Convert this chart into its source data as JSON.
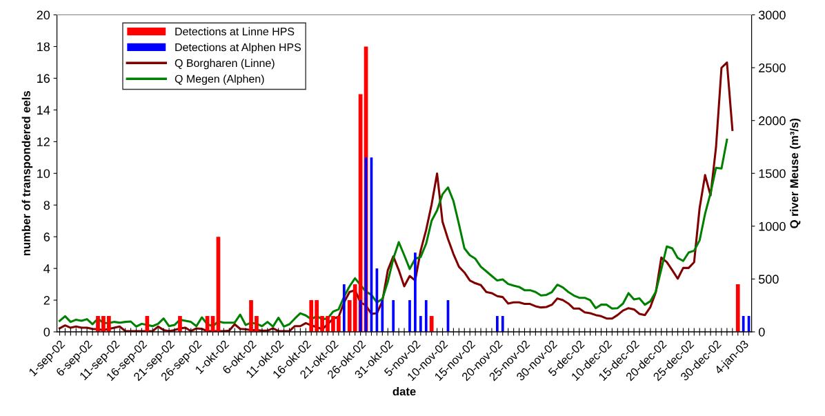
{
  "chart_data": {
    "type": "bar",
    "xlabel": "date",
    "ylabel": "number of transpondered eels",
    "y2label": "Q river Meuse (m³/s)",
    "categories": [
      "1-sep-02",
      null,
      null,
      null,
      null,
      "6-sep-02",
      null,
      null,
      null,
      null,
      "11-sep-02",
      null,
      null,
      null,
      null,
      "16-sep-02",
      null,
      null,
      null,
      null,
      "21-sep-02",
      null,
      null,
      null,
      null,
      "26-sep-02",
      null,
      null,
      null,
      null,
      "1-okt-02",
      null,
      null,
      null,
      null,
      "6-okt-02",
      null,
      null,
      null,
      null,
      "11-okt-02",
      null,
      null,
      null,
      null,
      "16-okt-02",
      null,
      null,
      null,
      null,
      "21-okt-02",
      null,
      null,
      null,
      null,
      "26-okt-02",
      null,
      null,
      null,
      null,
      "31-okt-02",
      null,
      null,
      null,
      null,
      "5-nov-02",
      null,
      null,
      null,
      null,
      "10-nov-02",
      null,
      null,
      null,
      null,
      "15-nov-02",
      null,
      null,
      null,
      null,
      "20-nov-02",
      null,
      null,
      null,
      null,
      "25-nov-02",
      null,
      null,
      null,
      null,
      "30-nov-02",
      null,
      null,
      null,
      null,
      "5-dec-02",
      null,
      null,
      null,
      null,
      "10-dec-02",
      null,
      null,
      null,
      null,
      "15-dec-02",
      null,
      null,
      null,
      null,
      "20-dec-02",
      null,
      null,
      null,
      null,
      "25-dec-02",
      null,
      null,
      null,
      null,
      "30-dec-02",
      null,
      null,
      null,
      null,
      "4-jan-03",
      null
    ],
    "ylim": [
      0,
      20
    ],
    "yticks": [
      0,
      2,
      4,
      6,
      8,
      10,
      12,
      14,
      16,
      18,
      20
    ],
    "y2lim": [
      0,
      3000
    ],
    "y2ticks": [
      0,
      500,
      1000,
      1500,
      2000,
      2500,
      3000
    ],
    "grid": false,
    "legend": "top left",
    "series": [
      {
        "name": "Detections at Linne HPS",
        "color": "#ff0000",
        "values": [
          null,
          null,
          null,
          null,
          null,
          null,
          null,
          1,
          1,
          1,
          null,
          null,
          null,
          null,
          null,
          null,
          1,
          null,
          null,
          null,
          null,
          null,
          1,
          null,
          null,
          null,
          null,
          1,
          1,
          6,
          null,
          null,
          null,
          null,
          null,
          2,
          1,
          null,
          null,
          null,
          null,
          null,
          null,
          null,
          null,
          null,
          2,
          2,
          1,
          1,
          1,
          1,
          null,
          2,
          3,
          15,
          18,
          null,
          null,
          null,
          null,
          null,
          null,
          null,
          null,
          null,
          null,
          null,
          1,
          null,
          null,
          null,
          null,
          null,
          null,
          null,
          null,
          null,
          null,
          null,
          null,
          null,
          null,
          null,
          null,
          null,
          null,
          null,
          null,
          null,
          null,
          null,
          null,
          null,
          null,
          null,
          null,
          null,
          null,
          null,
          null,
          null,
          null,
          null,
          null,
          null,
          null,
          null,
          null,
          null,
          null,
          null,
          null,
          null,
          null,
          null,
          null,
          null,
          null,
          null,
          null,
          null,
          null,
          null,
          3,
          null,
          null
        ]
      },
      {
        "name": "Detections at Alphen HPS",
        "color": "#0000ff",
        "values": [
          null,
          null,
          null,
          null,
          null,
          null,
          null,
          null,
          null,
          null,
          null,
          null,
          null,
          null,
          null,
          null,
          null,
          null,
          null,
          null,
          null,
          null,
          null,
          null,
          null,
          null,
          null,
          null,
          null,
          null,
          null,
          null,
          null,
          null,
          null,
          null,
          null,
          null,
          null,
          null,
          null,
          null,
          null,
          null,
          null,
          null,
          null,
          null,
          null,
          null,
          null,
          null,
          3,
          null,
          null,
          2,
          11,
          11,
          4,
          2,
          null,
          2,
          null,
          null,
          2,
          5,
          1,
          2,
          null,
          null,
          null,
          2,
          null,
          null,
          null,
          null,
          null,
          null,
          null,
          null,
          1,
          1,
          null,
          null,
          null,
          null,
          null,
          null,
          null,
          null,
          null,
          null,
          null,
          null,
          null,
          null,
          null,
          null,
          null,
          null,
          null,
          null,
          null,
          null,
          null,
          null,
          null,
          null,
          null,
          null,
          null,
          null,
          null,
          null,
          null,
          null,
          null,
          null,
          null,
          null,
          null,
          null,
          null,
          null,
          null,
          1,
          1
        ]
      },
      {
        "name": "Q Borgharen (Linne)",
        "type": "line",
        "axis": "y2",
        "color": "#800000",
        "values": [
          33,
          61,
          39,
          50,
          39,
          39,
          28,
          24,
          17,
          28,
          39,
          50,
          7,
          7,
          7,
          7,
          7,
          7,
          50,
          17,
          7,
          17,
          33,
          39,
          7,
          33,
          28,
          7,
          7,
          7,
          7,
          11,
          72,
          28,
          24,
          17,
          17,
          11,
          11,
          33,
          7,
          7,
          7,
          54,
          54,
          83,
          61,
          46,
          24,
          72,
          126,
          141,
          279,
          377,
          394,
          279,
          250,
          170,
          176,
          290,
          584,
          714,
          584,
          431,
          529,
          486,
          768,
          964,
          1204,
          1498,
          1041,
          878,
          736,
          616,
          562,
          486,
          460,
          442,
          377,
          366,
          338,
          329,
          268,
          279,
          279,
          264,
          264,
          242,
          231,
          235,
          257,
          316,
          300,
          268,
          220,
          220,
          185,
          176,
          159,
          148,
          126,
          126,
          159,
          202,
          224,
          213,
          170,
          159,
          235,
          377,
          703,
          660,
          584,
          503,
          605,
          605,
          660,
          1172,
          1483,
          1291,
          1748,
          2499,
          2549,
          1911,
          null,
          null,
          null
        ]
      },
      {
        "name": "Q Megen (Alphen)",
        "type": "line",
        "axis": "y2",
        "color": "#008000",
        "values": [
          104,
          148,
          94,
          115,
          104,
          120,
          72,
          126,
          83,
          83,
          94,
          87,
          94,
          98,
          50,
          76,
          65,
          54,
          76,
          126,
          54,
          65,
          115,
          104,
          94,
          54,
          137,
          72,
          54,
          98,
          87,
          87,
          87,
          163,
          65,
          87,
          76,
          54,
          94,
          50,
          133,
          50,
          72,
          126,
          176,
          155,
          120,
          148,
          120,
          126,
          192,
          213,
          333,
          431,
          507,
          442,
          381,
          350,
          279,
          311,
          475,
          692,
          849,
          725,
          595,
          692,
          708,
          834,
          1051,
          1149,
          1302,
          1367,
          1237,
          1019,
          790,
          725,
          692,
          616,
          573,
          529,
          486,
          496,
          453,
          438,
          425,
          394,
          394,
          377,
          344,
          350,
          377,
          446,
          420,
          377,
          344,
          322,
          322,
          300,
          224,
          257,
          257,
          220,
          224,
          268,
          366,
          307,
          316,
          257,
          290,
          381,
          594,
          808,
          790,
          699,
          671,
          751,
          768,
          866,
          1117,
          1313,
          1552,
          1546,
          1818,
          null,
          null,
          null,
          null
        ]
      }
    ]
  }
}
